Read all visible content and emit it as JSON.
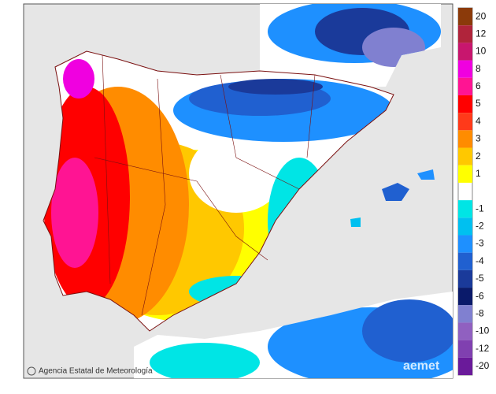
{
  "legend": {
    "items": [
      {
        "label": "20",
        "color": "#8b3a0a"
      },
      {
        "label": "12",
        "color": "#b0243b"
      },
      {
        "label": "10",
        "color": "#c8166e"
      },
      {
        "label": "8",
        "color": "#f000e0"
      },
      {
        "label": "6",
        "color": "#ff1493"
      },
      {
        "label": "5",
        "color": "#ff0000"
      },
      {
        "label": "4",
        "color": "#ff3a1a"
      },
      {
        "label": "3",
        "color": "#ff8c00"
      },
      {
        "label": "2",
        "color": "#ffc800"
      },
      {
        "label": "1",
        "color": "#ffff00"
      },
      {
        "label": "-1",
        "color": "#00e5e5"
      },
      {
        "label": "-2",
        "color": "#00c0f0"
      },
      {
        "label": "-3",
        "color": "#1e90ff"
      },
      {
        "label": "-4",
        "color": "#2060d0"
      },
      {
        "label": "-5",
        "color": "#1a3a9a"
      },
      {
        "label": "-6",
        "color": "#0a1a6a"
      },
      {
        "label": "-8",
        "color": "#8080d0"
      },
      {
        "label": "-10",
        "color": "#9060c0"
      },
      {
        "label": "-12",
        "color": "#8040b0"
      },
      {
        "label": "-20",
        "color": "#6a1a9a"
      }
    ]
  },
  "credit": "Agencia Estatal de Meteorología",
  "logo": "aemet"
}
